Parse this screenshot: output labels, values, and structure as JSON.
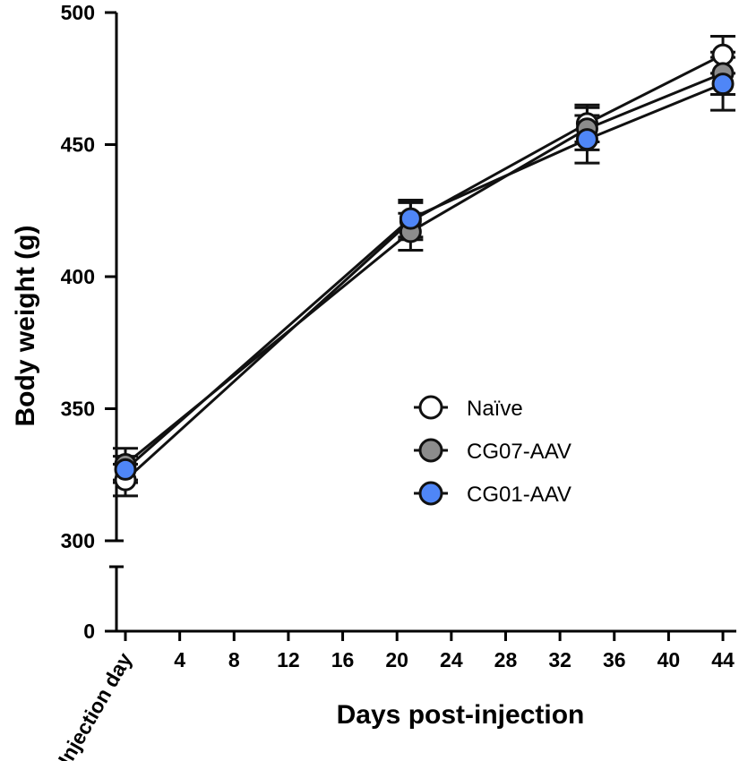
{
  "chart_data": {
    "type": "line",
    "xlabel": "Days post-injection",
    "ylabel": "Body weight (g)",
    "x_tick_labels": [
      "Injection day",
      "4",
      "8",
      "12",
      "16",
      "20",
      "24",
      "28",
      "32",
      "36",
      "40",
      "44"
    ],
    "x_tick_values": [
      0,
      4,
      8,
      12,
      16,
      20,
      24,
      28,
      32,
      36,
      40,
      44
    ],
    "xlim": [
      0,
      44
    ],
    "y_tick_labels": [
      "500",
      "450",
      "400",
      "350",
      "300",
      "0"
    ],
    "y_tick_values": [
      500,
      450,
      400,
      350,
      300,
      0
    ],
    "ylim": [
      300,
      500
    ],
    "y_axis_break": true,
    "legend_position": "center-right",
    "x": [
      0,
      21,
      34,
      44
    ],
    "series": [
      {
        "name": "Naïve",
        "values": [
          323,
          421,
          458,
          484
        ],
        "error": [
          6,
          7,
          7,
          7
        ],
        "marker_fill": "#ffffff"
      },
      {
        "name": "CG07-AAV",
        "values": [
          329,
          417,
          456,
          477
        ],
        "error": [
          6,
          7,
          8,
          8
        ],
        "marker_fill": "#8c8c8c"
      },
      {
        "name": "CG01-AAV",
        "values": [
          327,
          422,
          452,
          473
        ],
        "error": [
          5,
          7,
          9,
          10
        ],
        "marker_fill": "#4f86f7"
      }
    ]
  }
}
